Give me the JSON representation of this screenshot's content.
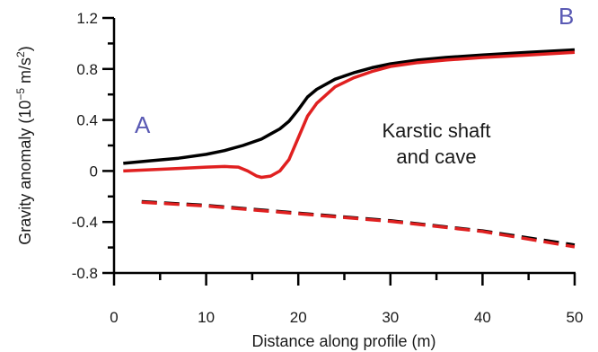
{
  "chart_data": {
    "type": "line",
    "xlabel": "Distance along profile (m)",
    "ylabel_main": "Gravity anomaly (10",
    "ylabel_exp1": "−5",
    "ylabel_mid": " m/s",
    "ylabel_exp2": "2",
    "ylabel_end": ")",
    "xlim": [
      0,
      50
    ],
    "ylim": [
      -0.8,
      1.2
    ],
    "x_ticks": [
      "0",
      "10",
      "20",
      "30",
      "40",
      "50"
    ],
    "y_ticks": [
      "-0.8",
      "-0.4",
      "0",
      "0.4",
      "0.8",
      "1.2"
    ],
    "x_tick_values": [
      0,
      10,
      20,
      30,
      40,
      50
    ],
    "y_tick_values": [
      -0.8,
      -0.4,
      0,
      0.4,
      0.8,
      1.2
    ],
    "x_minor_step": 5,
    "y_minor_step": 0.2,
    "annotation_line1": "Karstic shaft",
    "annotation_line2": "and cave",
    "label_a": "A",
    "label_b": "B",
    "label_color": "#5a5ab4",
    "series": [
      {
        "color": "#000000",
        "style": "solid",
        "x": [
          1,
          4,
          7,
          10,
          12,
          14,
          16,
          17,
          18,
          19,
          20,
          21,
          22,
          24,
          26,
          28,
          30,
          33,
          36,
          40,
          45,
          50
        ],
        "values": [
          0.06,
          0.08,
          0.1,
          0.13,
          0.16,
          0.2,
          0.25,
          0.29,
          0.33,
          0.39,
          0.48,
          0.58,
          0.64,
          0.72,
          0.77,
          0.81,
          0.84,
          0.87,
          0.89,
          0.91,
          0.93,
          0.95
        ]
      },
      {
        "color": "#e02020",
        "style": "solid",
        "x": [
          1,
          4,
          7,
          10,
          12,
          13.5,
          14.5,
          15.5,
          16,
          17,
          18,
          19,
          20,
          21,
          22,
          24,
          26,
          28,
          30,
          33,
          36,
          40,
          45,
          50
        ],
        "values": [
          0.0,
          0.01,
          0.02,
          0.03,
          0.035,
          0.03,
          0.0,
          -0.04,
          -0.05,
          -0.04,
          0.0,
          0.09,
          0.26,
          0.43,
          0.53,
          0.66,
          0.73,
          0.78,
          0.82,
          0.85,
          0.87,
          0.89,
          0.91,
          0.93
        ]
      },
      {
        "color": "#000000",
        "style": "dashed",
        "x": [
          3,
          10,
          20,
          30,
          40,
          50
        ],
        "values": [
          -0.24,
          -0.27,
          -0.33,
          -0.39,
          -0.47,
          -0.58
        ]
      },
      {
        "color": "#e02020",
        "style": "dashed",
        "x": [
          3,
          10,
          20,
          30,
          40,
          50
        ],
        "values": [
          -0.245,
          -0.275,
          -0.335,
          -0.395,
          -0.475,
          -0.595
        ]
      }
    ]
  }
}
